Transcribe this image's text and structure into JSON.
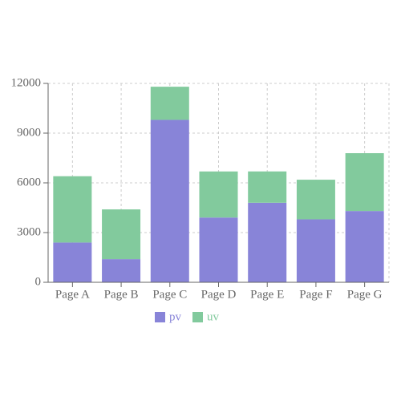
{
  "chart_data": {
    "type": "stacked-bar",
    "categories": [
      "Page A",
      "Page B",
      "Page C",
      "Page D",
      "Page E",
      "Page F",
      "Page G"
    ],
    "series": [
      {
        "name": "pv",
        "color": "#8884d8",
        "values": [
          2400,
          1398,
          9800,
          3908,
          4800,
          3800,
          4300
        ]
      },
      {
        "name": "uv",
        "color": "#82ca9d",
        "values": [
          4000,
          3000,
          2000,
          2780,
          1890,
          2390,
          3490
        ]
      }
    ],
    "ylim": [
      0,
      12000
    ],
    "yticks": [
      0,
      3000,
      6000,
      9000,
      12000
    ],
    "grid": true,
    "legend": "bottom"
  }
}
